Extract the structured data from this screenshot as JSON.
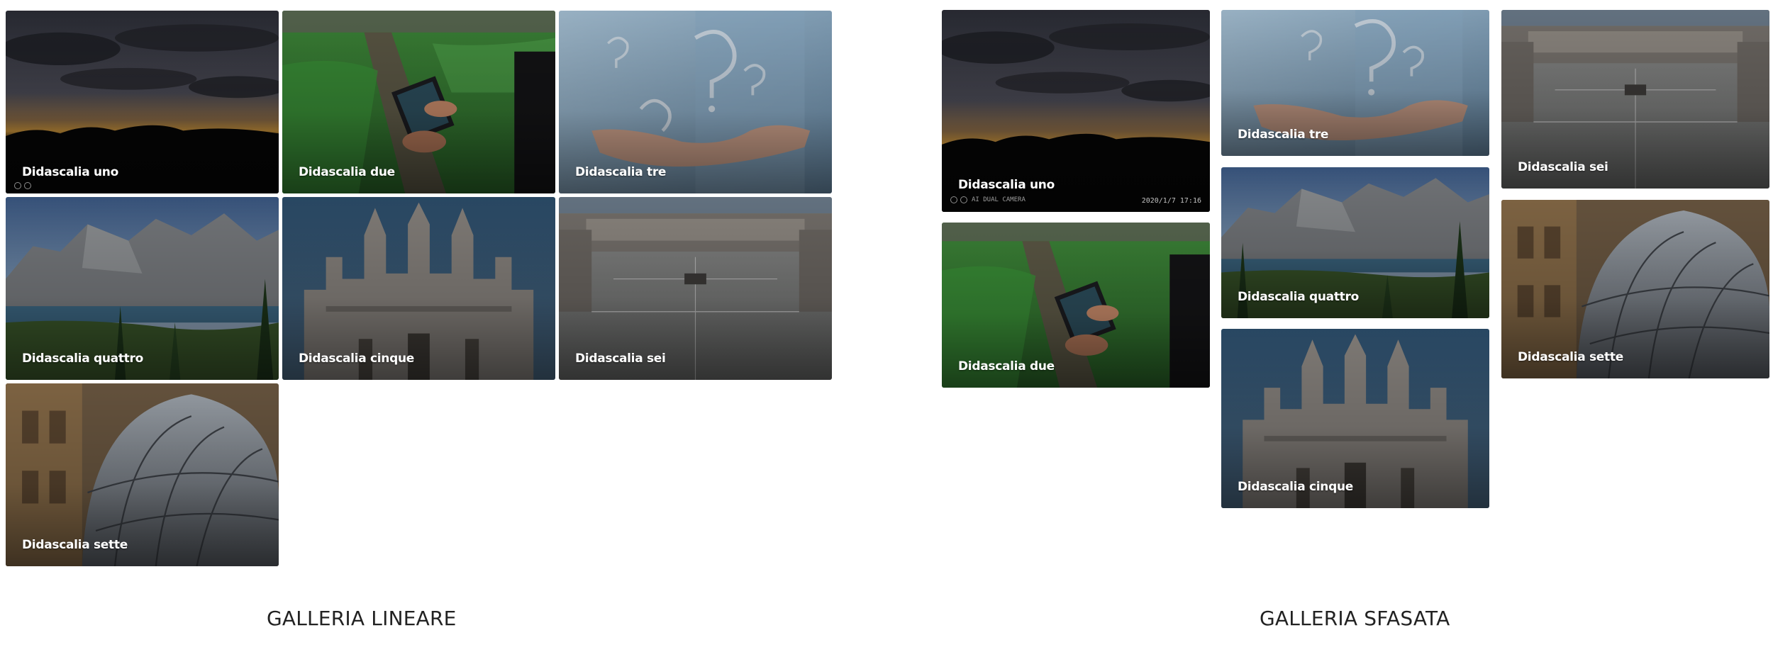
{
  "galleries": [
    {
      "title": "GALLERIA LINEARE",
      "items": [
        {
          "caption": "Didascalia uno",
          "photo": "sunset-landscape-photo"
        },
        {
          "caption": "Didascalia due",
          "photo": "farmer-tablet-field-photo"
        },
        {
          "caption": "Didascalia tre",
          "photo": "hand-question-marks-photo"
        },
        {
          "caption": "Didascalia quattro",
          "photo": "mountain-lake-photo"
        },
        {
          "caption": "Didascalia cinque",
          "photo": "cathedral-facade-photo"
        },
        {
          "caption": "Didascalia sei",
          "photo": "city-square-aerial-photo"
        },
        {
          "caption": "Didascalia sette",
          "photo": "glass-dome-gallery-photo"
        }
      ]
    },
    {
      "title": "GALLERIA SFASATA",
      "items": [
        {
          "caption": "Didascalia uno",
          "photo": "sunset-landscape-photo"
        },
        {
          "caption": "Didascalia due",
          "photo": "farmer-tablet-field-photo"
        },
        {
          "caption": "Didascalia tre",
          "photo": "hand-question-marks-photo"
        },
        {
          "caption": "Didascalia quattro",
          "photo": "mountain-lake-photo"
        },
        {
          "caption": "Didascalia cinque",
          "photo": "cathedral-facade-photo"
        },
        {
          "caption": "Didascalia sei",
          "photo": "city-square-aerial-photo"
        },
        {
          "caption": "Didascalia sette",
          "photo": "glass-dome-gallery-photo"
        }
      ]
    }
  ],
  "camera_overlay": {
    "date": "2020/1/7  17:16",
    "mark": "AI DUAL CAMERA"
  }
}
